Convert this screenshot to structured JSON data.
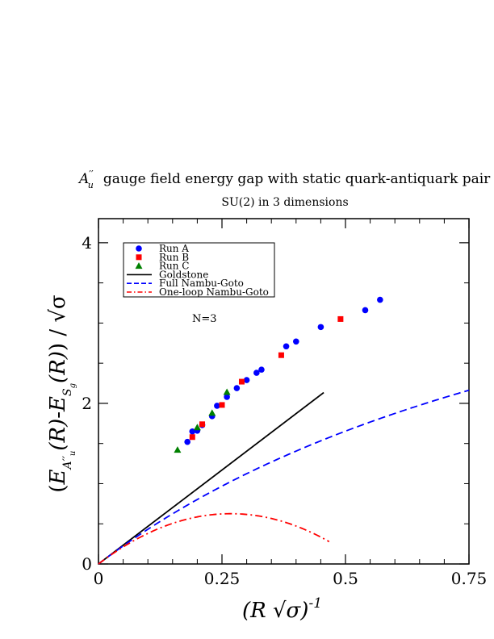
{
  "chart_data": {
    "type": "scatter",
    "title_prefix": "A",
    "title_sup": "′′",
    "title_sub": "u",
    "title_text": "gauge field energy gap with static quark-antiquark pair",
    "subtitle": "SU(2) in 3 dimensions",
    "xlabel": "(R √σ)",
    "xlabel_exp": "-1",
    "ylabel": "(E_{A''_u}(R) - E_{S_g}(R)) / √σ",
    "xlim": [
      0,
      0.75
    ],
    "ylim": [
      0,
      4.3
    ],
    "x_ticks": [
      "0",
      "0.25",
      "0.5",
      "0.75"
    ],
    "y_ticks": [
      "0",
      "2",
      "4"
    ],
    "annotation": "N=3",
    "legend_position": "upper-left",
    "series": [
      {
        "name": "Run A",
        "kind": "points",
        "marker": "circle",
        "color": "#0000ff",
        "points": [
          [
            0.18,
            1.52
          ],
          [
            0.19,
            1.65
          ],
          [
            0.2,
            1.66
          ],
          [
            0.21,
            1.73
          ],
          [
            0.23,
            1.84
          ],
          [
            0.24,
            1.97
          ],
          [
            0.26,
            2.08
          ],
          [
            0.28,
            2.19
          ],
          [
            0.3,
            2.29
          ],
          [
            0.32,
            2.38
          ],
          [
            0.33,
            2.42
          ],
          [
            0.38,
            2.71
          ],
          [
            0.4,
            2.77
          ],
          [
            0.45,
            2.95
          ],
          [
            0.54,
            3.16
          ],
          [
            0.57,
            3.29
          ]
        ]
      },
      {
        "name": "Run B",
        "kind": "points",
        "marker": "square",
        "color": "#ff0000",
        "points": [
          [
            0.19,
            1.58
          ],
          [
            0.21,
            1.74
          ],
          [
            0.25,
            1.98
          ],
          [
            0.29,
            2.27
          ],
          [
            0.37,
            2.6
          ],
          [
            0.49,
            3.05
          ]
        ]
      },
      {
        "name": "Run C",
        "kind": "points",
        "marker": "triangle",
        "color": "#008000",
        "points": [
          [
            0.16,
            1.42
          ],
          [
            0.2,
            1.7
          ],
          [
            0.23,
            1.88
          ],
          [
            0.26,
            2.14
          ]
        ]
      },
      {
        "name": "Goldstone",
        "kind": "line",
        "dash": "solid",
        "color": "#000000"
      },
      {
        "name": "Full Nambu-Goto",
        "kind": "line",
        "dash": "dashed",
        "color": "#0000ff"
      },
      {
        "name": "One-loop Nambu-Goto",
        "kind": "line",
        "dash": "dashdot",
        "color": "#ff0000"
      }
    ]
  }
}
